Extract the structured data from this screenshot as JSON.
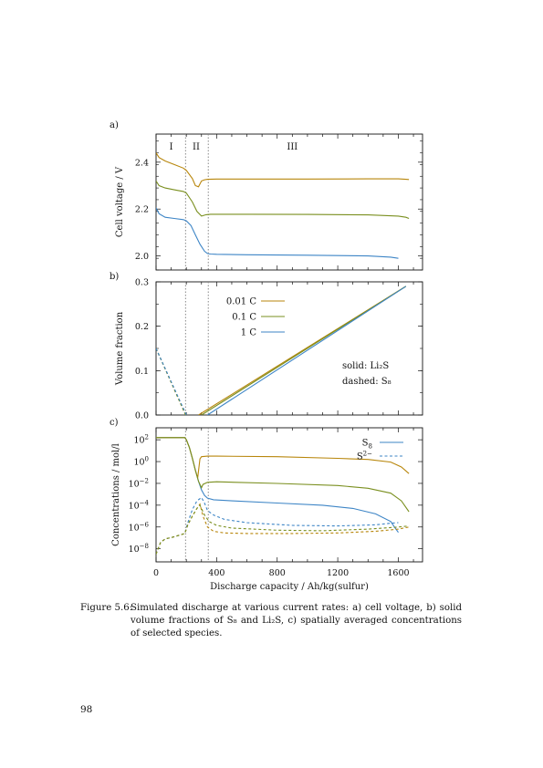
{
  "chart_data": [
    {
      "panel_label": "a)",
      "type": "line",
      "ylabel": "Cell voltage / V",
      "xlim": [
        0,
        1760
      ],
      "ylim": [
        1.94,
        2.52
      ],
      "yticks": [
        2.0,
        2.2,
        2.4
      ],
      "ytick_labels": [
        "2.0",
        "2.2",
        "2.4"
      ],
      "region_labels": [
        {
          "text": "I",
          "x": 100
        },
        {
          "text": "II",
          "x": 265
        },
        {
          "text": "III",
          "x": 900
        }
      ],
      "region_boundaries": [
        195,
        345
      ],
      "series": [
        {
          "color": "#b8860b",
          "x": [
            0,
            20,
            60,
            120,
            180,
            200,
            240,
            260,
            280,
            300,
            320,
            340,
            400,
            600,
            1000,
            1400,
            1600,
            1650,
            1670
          ],
          "y": [
            2.44,
            2.42,
            2.405,
            2.39,
            2.375,
            2.365,
            2.33,
            2.3,
            2.295,
            2.32,
            2.325,
            2.327,
            2.328,
            2.328,
            2.328,
            2.329,
            2.329,
            2.327,
            2.326
          ]
        },
        {
          "color": "#7a8f1f",
          "x": [
            0,
            20,
            60,
            120,
            180,
            200,
            240,
            270,
            300,
            330,
            360,
            400,
            600,
            1000,
            1400,
            1600,
            1650,
            1670
          ],
          "y": [
            2.32,
            2.3,
            2.29,
            2.282,
            2.275,
            2.268,
            2.23,
            2.19,
            2.17,
            2.176,
            2.178,
            2.178,
            2.178,
            2.177,
            2.175,
            2.17,
            2.165,
            2.16
          ]
        },
        {
          "color": "#3d85c6",
          "x": [
            0,
            20,
            60,
            120,
            180,
            200,
            230,
            260,
            290,
            320,
            340,
            360,
            400,
            600,
            1000,
            1400,
            1550,
            1600
          ],
          "y": [
            2.205,
            2.18,
            2.165,
            2.16,
            2.155,
            2.15,
            2.13,
            2.09,
            2.05,
            2.02,
            2.01,
            2.008,
            2.007,
            2.005,
            2.003,
            2.0,
            1.995,
            1.99
          ]
        }
      ]
    },
    {
      "panel_label": "b)",
      "type": "line",
      "ylabel": "Volume fraction",
      "xlim": [
        0,
        1760
      ],
      "ylim": [
        0,
        0.3
      ],
      "yticks": [
        0.0,
        0.1,
        0.2,
        0.3
      ],
      "ytick_labels": [
        "0.0",
        "0.1",
        "0.2",
        "0.3"
      ],
      "legend_entries": [
        {
          "label": "0.01 C",
          "color": "#b8860b"
        },
        {
          "label": "0.1 C",
          "color": "#7a8f1f"
        },
        {
          "label": "1 C",
          "color": "#3d85c6"
        }
      ],
      "annotations": [
        "solid: Li₂S",
        "dashed: S₈"
      ],
      "series": [
        {
          "color": "#b8860b",
          "style": "solid",
          "x": [
            280,
            1650
          ],
          "y": [
            0.0,
            0.29
          ]
        },
        {
          "color": "#7a8f1f",
          "style": "solid",
          "x": [
            300,
            1650
          ],
          "y": [
            0.0,
            0.29
          ]
        },
        {
          "color": "#3d85c6",
          "style": "solid",
          "x": [
            340,
            1650
          ],
          "y": [
            0.0,
            0.29
          ]
        },
        {
          "color": "#b8860b",
          "style": "dashed",
          "x": [
            0,
            195
          ],
          "y": [
            0.15,
            0.0
          ]
        },
        {
          "color": "#7a8f1f",
          "style": "dashed",
          "x": [
            0,
            195
          ],
          "y": [
            0.15,
            0.0
          ]
        },
        {
          "color": "#3d85c6",
          "style": "dashed",
          "x": [
            0,
            200
          ],
          "y": [
            0.15,
            0.0
          ]
        }
      ]
    },
    {
      "panel_label": "c)",
      "type": "line",
      "ylabel": "Concentrations / mol/l",
      "xlabel": "Discharge capacity / Ah/kg(sulfur)",
      "xlim": [
        0,
        1760
      ],
      "xticks": [
        0,
        400,
        800,
        1200,
        1600
      ],
      "xtick_labels": [
        "0",
        "400",
        "800",
        "1200",
        "1600"
      ],
      "ylim_log10": [
        -9.2,
        3.1
      ],
      "yticks_log10": [
        -8,
        -6,
        -4,
        -2,
        0,
        2
      ],
      "ytick_labels": [
        {
          "base": "10",
          "exp": "−8"
        },
        {
          "base": "10",
          "exp": "−6"
        },
        {
          "base": "10",
          "exp": "−4"
        },
        {
          "base": "10",
          "exp": "−2"
        },
        {
          "base": "10",
          "exp": "0"
        },
        {
          "base": "10",
          "exp": "2"
        }
      ],
      "legend_entries": [
        {
          "label": "S",
          "sub": "8",
          "sup": "",
          "style": "solid",
          "color": "#3d85c6"
        },
        {
          "label": "S",
          "sub": "",
          "sup": "2−",
          "style": "dashed",
          "color": "#3d85c6"
        }
      ],
      "series": [
        {
          "color": "#3d85c6",
          "style": "solid",
          "x": [
            0,
            190,
            200,
            220,
            240,
            260,
            280,
            300,
            320,
            340,
            380,
            500,
            800,
            1100,
            1300,
            1450,
            1550,
            1580,
            1600
          ],
          "y_log10": [
            2.2,
            2.2,
            2.0,
            1.3,
            0.3,
            -0.8,
            -1.8,
            -2.6,
            -3.1,
            -3.35,
            -3.5,
            -3.6,
            -3.8,
            -4.0,
            -4.3,
            -4.8,
            -5.5,
            -6.1,
            -6.5
          ]
        },
        {
          "color": "#b8860b",
          "style": "solid",
          "x": [
            0,
            190,
            200,
            220,
            240,
            260,
            275,
            290,
            300,
            340,
            400,
            800,
            1200,
            1400,
            1550,
            1620,
            1670
          ],
          "y_log10": [
            2.2,
            2.2,
            2.0,
            1.3,
            0.3,
            -0.8,
            -1.5,
            0.25,
            0.45,
            0.5,
            0.5,
            0.45,
            0.3,
            0.2,
            -0.05,
            -0.5,
            -1.1
          ]
        },
        {
          "color": "#7a8f1f",
          "style": "solid",
          "x": [
            0,
            190,
            200,
            220,
            240,
            260,
            280,
            300,
            310,
            340,
            400,
            800,
            1200,
            1400,
            1550,
            1620,
            1670
          ],
          "y_log10": [
            2.2,
            2.2,
            2.0,
            1.3,
            0.3,
            -0.8,
            -1.8,
            -2.4,
            -2.1,
            -1.9,
            -1.85,
            -2.0,
            -2.2,
            -2.45,
            -2.9,
            -3.6,
            -4.6
          ]
        },
        {
          "color": "#3d85c6",
          "style": "dashed",
          "x": [
            0,
            30,
            60,
            120,
            190,
            210,
            240,
            270,
            300,
            320,
            340,
            380,
            450,
            600,
            900,
            1200,
            1450,
            1550,
            1600
          ],
          "y_log10": [
            -8.5,
            -7.4,
            -7.1,
            -6.9,
            -6.6,
            -5.6,
            -4.4,
            -3.6,
            -3.3,
            -3.8,
            -4.5,
            -4.9,
            -5.3,
            -5.6,
            -5.85,
            -5.9,
            -5.8,
            -5.65,
            -5.6
          ]
        },
        {
          "color": "#b8860b",
          "style": "dashed",
          "x": [
            0,
            30,
            60,
            120,
            190,
            210,
            240,
            270,
            290,
            310,
            340,
            380,
            450,
            600,
            900,
            1200,
            1450,
            1600,
            1670
          ],
          "y_log10": [
            -8.5,
            -7.4,
            -7.1,
            -6.9,
            -6.6,
            -5.8,
            -5.0,
            -4.3,
            -3.9,
            -5.0,
            -6.0,
            -6.4,
            -6.55,
            -6.6,
            -6.6,
            -6.55,
            -6.4,
            -6.2,
            -6.0
          ]
        },
        {
          "color": "#7a8f1f",
          "style": "dashed",
          "x": [
            0,
            30,
            60,
            120,
            190,
            210,
            240,
            270,
            290,
            320,
            350,
            400,
            500,
            800,
            1100,
            1400,
            1600,
            1670
          ],
          "y_log10": [
            -8.5,
            -7.4,
            -7.1,
            -6.9,
            -6.6,
            -5.8,
            -5.0,
            -4.3,
            -4.0,
            -4.9,
            -5.5,
            -5.85,
            -6.1,
            -6.3,
            -6.35,
            -6.2,
            -6.0,
            -5.9
          ]
        }
      ]
    }
  ],
  "caption": {
    "label": "Figure 5.6:",
    "text": "Simulated discharge at various current rates: a) cell voltage, b) solid volume fractions of S₈ and Li₂S, c) spatially averaged concentrations of selected species."
  },
  "page_number": "98",
  "colors": {
    "gold": "#b8860b",
    "olive": "#7a8f1f",
    "blue": "#3d85c6",
    "marker": "#888888"
  }
}
